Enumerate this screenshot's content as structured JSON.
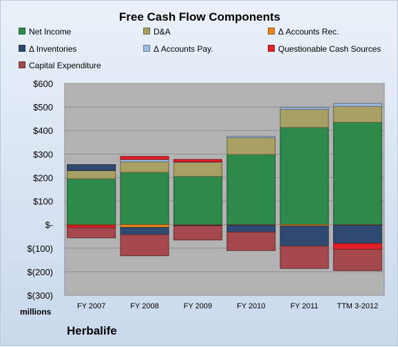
{
  "chart_data": {
    "type": "bar",
    "stacked": true,
    "title": "Free Cash Flow Components",
    "ylabel": "millions",
    "company": "Herbalife",
    "categories": [
      "FY 2007",
      "FY 2008",
      "FY 2009",
      "FY 2010",
      "FY 2011",
      "TTM 3-2012"
    ],
    "ylim": [
      -300,
      600
    ],
    "yticks": [
      600,
      500,
      400,
      300,
      200,
      100,
      0,
      -100,
      -200,
      -300
    ],
    "ytick_labels": [
      "$600",
      "$500",
      "$400",
      "$300",
      "$200",
      "$100",
      "$-",
      "$(100)",
      "$(200)",
      "$(300)"
    ],
    "grid": true,
    "legend_placement": "top",
    "series": [
      {
        "name": "Net Income",
        "color": "#2e8a4a",
        "values": [
          195,
          222,
          205,
          298,
          413,
          435
        ]
      },
      {
        "name": "D&A",
        "color": "#a8a062",
        "values": [
          35,
          45,
          60,
          72,
          77,
          68
        ]
      },
      {
        "name": "Δ Accounts Rec.",
        "color": "#e8871e",
        "values": [
          -3,
          -12,
          -2,
          -2,
          -6,
          -2
        ]
      },
      {
        "name": "Δ Inventories",
        "color": "#2f4a70",
        "values": [
          25,
          -30,
          -3,
          -30,
          -85,
          -78
        ]
      },
      {
        "name": "Δ Accounts Pay.",
        "color": "#9bbbe0",
        "values": [
          0,
          10,
          2,
          5,
          8,
          12
        ]
      },
      {
        "name": "Questionable Cash Sources",
        "color": "#e2202a",
        "values": [
          -10,
          13,
          10,
          0,
          0,
          -25
        ]
      },
      {
        "name": "Capital Expenditure",
        "color": "#a5484d",
        "values": [
          -43,
          -90,
          -60,
          -78,
          -95,
          -90
        ]
      }
    ]
  }
}
